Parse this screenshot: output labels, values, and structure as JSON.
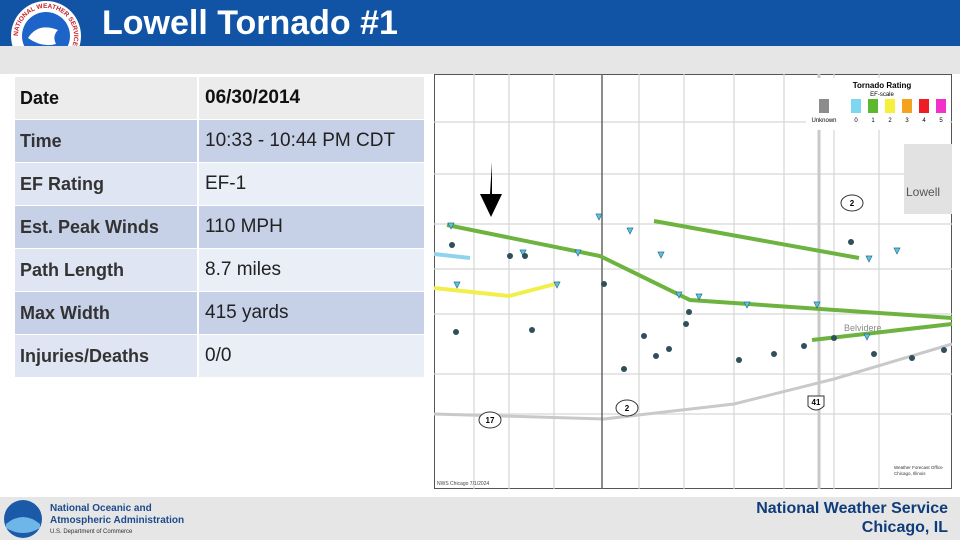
{
  "header": {
    "title": "Lowell Tornado #1",
    "logo_text": "NATIONAL WEATHER SERVICE"
  },
  "table": {
    "rows": [
      [
        "Date",
        "06/30/2014"
      ],
      [
        "Time",
        "10:33 - 10:44 PM CDT"
      ],
      [
        "EF Rating",
        "EF-1"
      ],
      [
        "Est. Peak Winds",
        "110 MPH"
      ],
      [
        "Path Length",
        "8.7 miles"
      ],
      [
        "Max Width",
        "415 yards"
      ],
      [
        "Injuries/Deaths",
        "0/0"
      ]
    ]
  },
  "map": {
    "legend": {
      "title": "Tornado Rating",
      "subtitle": "EF-scale",
      "items": [
        {
          "label": "Unknown",
          "color": "#8c8c8c"
        },
        {
          "label": "0",
          "color": "#7fd6f0"
        },
        {
          "label": "1",
          "color": "#5cb82e"
        },
        {
          "label": "2",
          "color": "#f4f03c"
        },
        {
          "label": "3",
          "color": "#f5a21f"
        },
        {
          "label": "4",
          "color": "#ee1c25"
        },
        {
          "label": "5",
          "color": "#f032c8"
        }
      ]
    },
    "town": "Lowell",
    "place": "Belvidere",
    "roads": [
      "2",
      "2",
      "17",
      "41"
    ],
    "credit": "NWS Chicago  7/1/2024",
    "office": [
      "Weather Forecast Office",
      "Chicago, Illinois"
    ]
  },
  "footer": {
    "agency": [
      "National Oceanic and",
      "Atmospheric Administration"
    ],
    "department": "U.S. Department of Commerce",
    "office": "National Weather Service",
    "location": "Chicago, IL"
  }
}
